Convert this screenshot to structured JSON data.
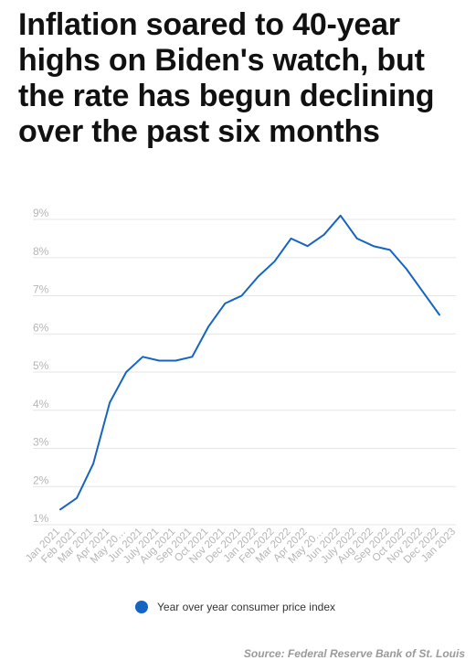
{
  "chart_data": {
    "type": "line",
    "title": "Inflation soared to 40-year highs on Biden's watch, but the rate has begun declining over the past six months",
    "categories": [
      "Jan 2021",
      "Feb 2021",
      "Mar 2021",
      "Apr 2021",
      "May 20…",
      "Jun 2021",
      "July 2021",
      "Aug 2021",
      "Sep 2021",
      "Oct 2021",
      "Nov 2021",
      "Dec 2021",
      "Jan 2022",
      "Feb 2022",
      "Mar 2022",
      "Apr 2022",
      "May 20…",
      "Jun 2022",
      "July 2022",
      "Aug 2022",
      "Sep 2022",
      "Oct 2022",
      "Nov 2022",
      "Dec 2022",
      "Jan 2023"
    ],
    "series": [
      {
        "name": "Year over year consumer price index",
        "color": "#1565c0",
        "values": [
          1.4,
          1.7,
          2.6,
          4.2,
          5.0,
          5.4,
          5.3,
          5.3,
          5.4,
          6.2,
          6.8,
          7.0,
          7.5,
          7.9,
          8.5,
          8.3,
          8.6,
          9.1,
          8.5,
          8.3,
          8.2,
          7.7,
          7.1,
          6.5,
          null
        ]
      }
    ],
    "ylim": [
      1,
      9
    ],
    "yticks": [
      1,
      2,
      3,
      4,
      5,
      6,
      7,
      8,
      9
    ],
    "ytick_labels": [
      "1%",
      "2%",
      "3%",
      "4%",
      "5%",
      "6%",
      "7%",
      "8%",
      "9%"
    ],
    "grid": true,
    "legend_position": "bottom"
  },
  "source": "Source: Federal Reserve Bank of St. Louis"
}
